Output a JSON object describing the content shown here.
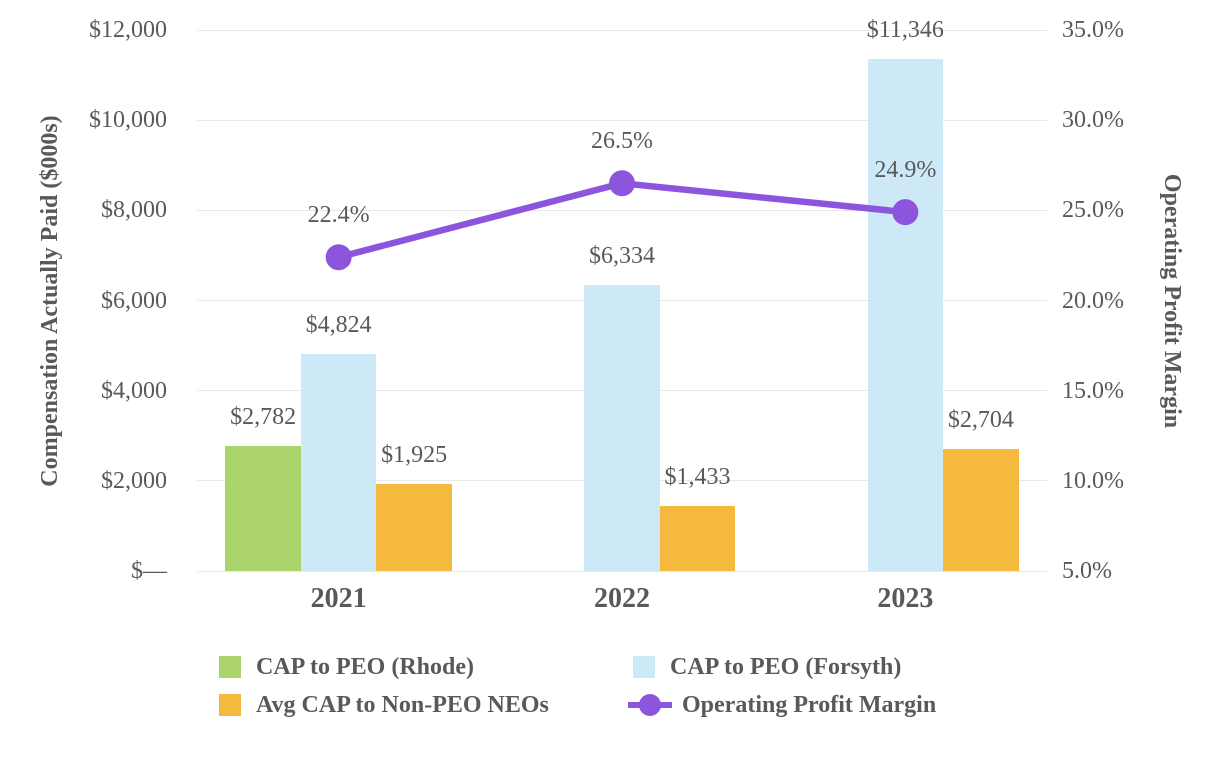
{
  "chart_data": {
    "type": "combo-bar-line",
    "categories": [
      "2021",
      "2022",
      "2023"
    ],
    "series": [
      {
        "name": "CAP to PEO (Rhode)",
        "type": "bar",
        "color": "#abd56c",
        "values": [
          2782,
          null,
          null
        ],
        "labels": [
          "$2,782",
          null,
          null
        ]
      },
      {
        "name": "CAP to PEO (Forsyth)",
        "type": "bar",
        "color": "#cde9f7",
        "values": [
          4824,
          6334,
          11346
        ],
        "labels": [
          "$4,824",
          "$6,334",
          "$11,346"
        ]
      },
      {
        "name": "Avg CAP to Non-PEO NEOs",
        "type": "bar",
        "color": "#f6b940",
        "values": [
          1925,
          1433,
          2704
        ],
        "labels": [
          "$1,925",
          "$1,433",
          "$2,704"
        ]
      },
      {
        "name": "Operating Profit Margin",
        "type": "line",
        "axis": "right",
        "color": "#8b55dd",
        "values": [
          22.4,
          26.5,
          24.9
        ],
        "labels": [
          "22.4%",
          "26.5%",
          "24.9%"
        ]
      }
    ],
    "left_axis": {
      "title": "Compensation Actually Paid ($000s)",
      "min": 0,
      "max": 12000,
      "ticks": [
        "$—",
        "$2,000",
        "$4,000",
        "$6,000",
        "$8,000",
        "$10,000",
        "$12,000"
      ]
    },
    "right_axis": {
      "title": "Operating Profit Margin",
      "min": 5,
      "max": 35,
      "ticks": [
        "5.0%",
        "10.0%",
        "15.0%",
        "20.0%",
        "25.0%",
        "30.0%",
        "35.0%"
      ]
    },
    "legend": [
      {
        "label": "CAP to PEO (Rhode)",
        "swatch": "square",
        "color": "#abd56c"
      },
      {
        "label": "CAP to PEO (Forsyth)",
        "swatch": "square",
        "color": "#cde9f7"
      },
      {
        "label": "Avg CAP to Non-PEO NEOs",
        "swatch": "square",
        "color": "#f6b940"
      },
      {
        "label": "Operating Profit Margin",
        "swatch": "line-marker",
        "color": "#8b55dd"
      }
    ],
    "grid": true,
    "legend_position": "bottom",
    "text_color": "#595959",
    "grid_color": "#e8e8e8",
    "background_color": "#ffffff"
  }
}
